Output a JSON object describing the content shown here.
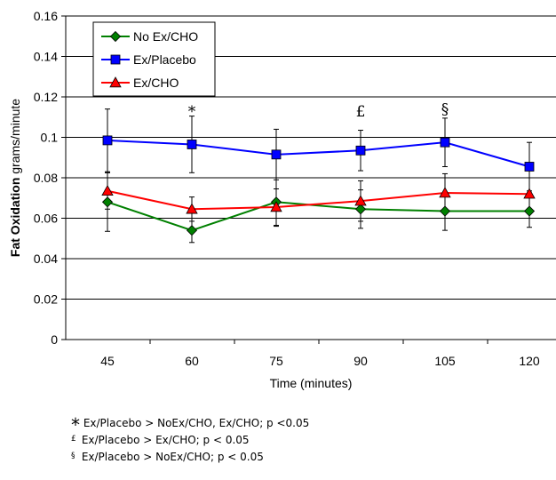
{
  "chart_data": {
    "type": "line",
    "xlabel": "Time (minutes)",
    "ylabel": {
      "bold": "Fat Oxidation",
      "rest": " grams/minute"
    },
    "categories": [
      "45",
      "60",
      "75",
      "90",
      "105",
      "120"
    ],
    "yticks": [
      "0",
      "0.02",
      "0.04",
      "0.06",
      "0.08",
      "0.1",
      "0.12",
      "0.14",
      "0.16"
    ],
    "ylim": [
      0,
      0.16
    ],
    "grid": true,
    "legend_position": "top-left",
    "series": [
      {
        "name": "No Ex/CHO",
        "color": "#008000",
        "marker": "diamond",
        "values": [
          0.068,
          0.054,
          0.068,
          0.0645,
          0.0635,
          0.0635
        ],
        "errors": [
          0.0145,
          0.006,
          0.012,
          0.0095,
          0.0095,
          0.008
        ]
      },
      {
        "name": "Ex/Placebo",
        "color": "#0000FF",
        "marker": "square",
        "values": [
          0.0985,
          0.0965,
          0.0915,
          0.0935,
          0.0975,
          0.0855
        ],
        "errors": [
          0.0155,
          0.014,
          0.0125,
          0.01,
          0.012,
          0.012
        ]
      },
      {
        "name": "Ex/CHO",
        "color": "#FF0000",
        "marker": "triangle",
        "values": [
          0.0735,
          0.0645,
          0.0655,
          0.0685,
          0.0725,
          0.072
        ],
        "errors": [
          0.009,
          0.006,
          0.009,
          0.01,
          0.0095,
          0.008
        ]
      }
    ],
    "annotations": [
      {
        "label": "*",
        "x": "60",
        "y": 0.113
      },
      {
        "label": "£",
        "x": "90",
        "y": 0.113
      },
      {
        "label": "§",
        "x": "105",
        "y": 0.114
      }
    ]
  },
  "footnotes": [
    {
      "symbol": "*",
      "text": "Ex/Placebo > NoEx/CHO, Ex/CHO; p <0.05"
    },
    {
      "symbol": "£",
      "text": "Ex/Placebo > Ex/CHO; p < 0.05"
    },
    {
      "symbol": "§",
      "text": "Ex/Placebo > NoEx/CHO; p < 0.05"
    }
  ]
}
